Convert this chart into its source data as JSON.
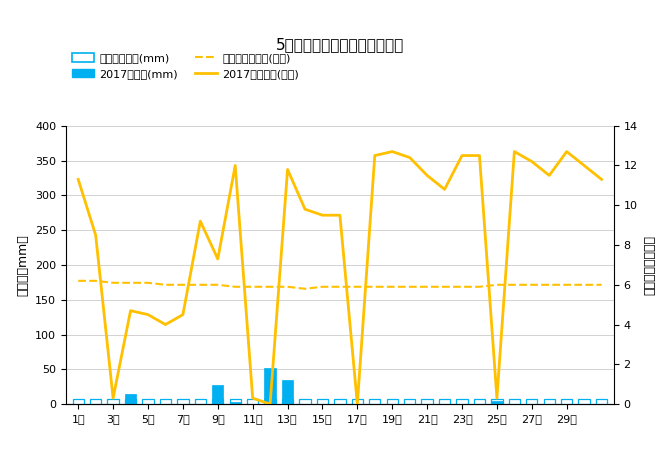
{
  "title": "5月降水量・日照時間（日別）",
  "days": [
    1,
    2,
    3,
    4,
    5,
    6,
    7,
    8,
    9,
    10,
    11,
    12,
    13,
    14,
    15,
    16,
    17,
    18,
    19,
    20,
    21,
    22,
    23,
    24,
    25,
    26,
    27,
    28,
    29,
    30,
    31
  ],
  "precip_2017": [
    0,
    0,
    0,
    15,
    0,
    0,
    0,
    0,
    28,
    3,
    0,
    52,
    35,
    0,
    0,
    0,
    0,
    0,
    0,
    0,
    0,
    0,
    0,
    0,
    5,
    0,
    0,
    0,
    0,
    0,
    0
  ],
  "precip_avg": [
    8,
    8,
    8,
    8,
    8,
    8,
    8,
    8,
    8,
    8,
    8,
    8,
    8,
    8,
    8,
    8,
    8,
    8,
    8,
    8,
    8,
    8,
    8,
    8,
    8,
    8,
    8,
    8,
    8,
    8,
    8
  ],
  "sunshine_2017": [
    11.3,
    8.5,
    0.3,
    4.7,
    4.5,
    4.0,
    4.5,
    9.2,
    7.3,
    12.0,
    0.3,
    0.0,
    11.8,
    9.8,
    9.5,
    9.5,
    0.0,
    12.5,
    12.7,
    12.4,
    11.5,
    10.8,
    12.5,
    12.5,
    0.3,
    12.7,
    12.2,
    11.5,
    12.7,
    12.0,
    11.3
  ],
  "sunshine_avg": [
    6.2,
    6.2,
    6.1,
    6.1,
    6.1,
    6.0,
    6.0,
    6.0,
    6.0,
    5.9,
    5.9,
    5.9,
    5.9,
    5.8,
    5.9,
    5.9,
    5.9,
    5.9,
    5.9,
    5.9,
    5.9,
    5.9,
    5.9,
    5.9,
    6.0,
    6.0,
    6.0,
    6.0,
    6.0,
    6.0,
    6.0
  ],
  "precip_color": "#00b0f0",
  "precip_avg_color": "#00b0f0",
  "sunshine_color": "#ffc000",
  "sunshine_avg_color": "#ffc000",
  "ylabel_left": "降水量（mm）",
  "ylabel_right": "日照時間（時間）",
  "ylim_left": [
    0,
    400
  ],
  "ylim_right": [
    0,
    14
  ],
  "yticks_left": [
    0,
    50,
    100,
    150,
    200,
    250,
    300,
    350,
    400
  ],
  "yticks_right": [
    0,
    2,
    4,
    6,
    8,
    10,
    12,
    14
  ],
  "legend1_label": "降水量平年値(mm)",
  "legend2_label": "2017降水量(mm)",
  "legend3_label": "日照時間平年値(時間)",
  "legend4_label": "2017日照時間(時間)",
  "bg_color": "#ffffff",
  "grid_color": "#c0c0c0"
}
